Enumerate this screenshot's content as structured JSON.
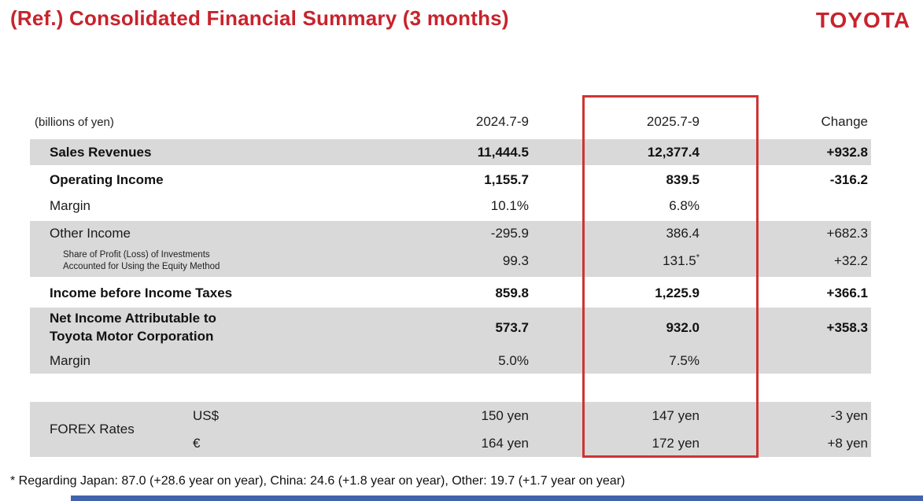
{
  "slide": {
    "title": "(Ref.) Consolidated Financial Summary (3 months)",
    "logo": "TOYOTA",
    "unit_note": "(billions of yen)",
    "footnote": "* Regarding Japan: 87.0 (+28.6 year on year), China: 24.6 (+1.8 year on year), Other: 19.7 (+1.7 year on year)"
  },
  "colors": {
    "accent_red": "#c8232c",
    "highlight_border": "#ce3434",
    "row_gray": "#d9d9d9",
    "bottom_bar_blue": "#4164ad"
  },
  "table": {
    "columns": {
      "col1": "2024.7-9",
      "col2": "2025.7-9",
      "col3": "Change"
    },
    "rows": [
      {
        "label": "Sales Revenues",
        "v2024": "11,444.5",
        "v2025": "12,377.4",
        "change": "+932.8"
      },
      {
        "label": "Operating Income",
        "v2024": "1,155.7",
        "v2025": "839.5",
        "change": "-316.2"
      },
      {
        "label": "Margin",
        "v2024": "10.1%",
        "v2025": "6.8%",
        "change": ""
      },
      {
        "label": "Other Income",
        "v2024": "-295.9",
        "v2025": "386.4",
        "change": "+682.3"
      },
      {
        "label1": "Share of Profit (Loss) of Investments",
        "label2": "Accounted for Using the Equity Method",
        "v2024": "99.3",
        "v2025": "131.5",
        "mark": "*",
        "change": "+32.2"
      },
      {
        "label": "Income before Income Taxes",
        "v2024": "859.8",
        "v2025": "1,225.9",
        "change": "+366.1"
      },
      {
        "label1": "Net Income Attributable to",
        "label2": "Toyota Motor Corporation",
        "v2024": "573.7",
        "v2025": "932.0",
        "change": "+358.3"
      },
      {
        "label": "Margin",
        "v2024": "5.0%",
        "v2025": "7.5%",
        "change": ""
      }
    ],
    "forex": {
      "label": "FOREX Rates",
      "rows": [
        {
          "currency": "US$",
          "v2024": "150 yen",
          "v2025": "147 yen",
          "change": "-3 yen"
        },
        {
          "currency": "€",
          "v2024": "164 yen",
          "v2025": "172 yen",
          "change": "+8 yen"
        }
      ]
    }
  }
}
